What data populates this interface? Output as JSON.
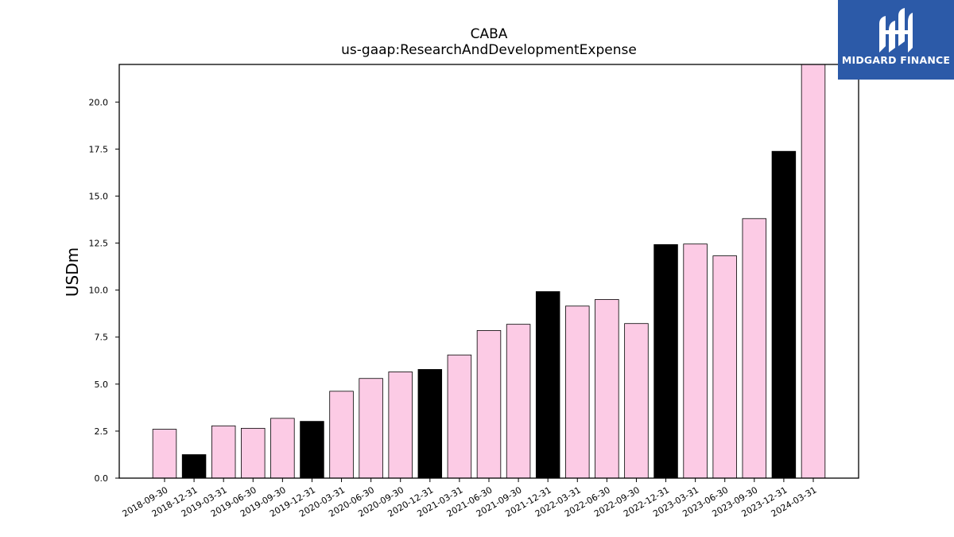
{
  "chart_data": {
    "type": "bar",
    "title": "CABA",
    "subtitle": "us-gaap:ResearchAndDevelopmentExpense",
    "xlabel": "",
    "ylabel": "USDm",
    "ylim": [
      0,
      22
    ],
    "yticks": [
      "0.0",
      "2.5",
      "5.0",
      "7.5",
      "10.0",
      "12.5",
      "15.0",
      "17.5",
      "20.0"
    ],
    "categories": [
      "2018-09-30",
      "2018-12-31",
      "2019-03-31",
      "2019-06-30",
      "2019-09-30",
      "2019-12-31",
      "2020-03-31",
      "2020-06-30",
      "2020-09-30",
      "2020-12-31",
      "2021-03-31",
      "2021-06-30",
      "2021-09-30",
      "2021-12-31",
      "2022-03-31",
      "2022-06-30",
      "2022-09-30",
      "2022-12-31",
      "2023-03-31",
      "2023-06-30",
      "2023-09-30",
      "2023-12-31",
      "2024-03-31"
    ],
    "values": [
      2.6,
      1.25,
      2.78,
      2.65,
      3.18,
      3.02,
      4.62,
      5.3,
      5.65,
      5.78,
      6.55,
      7.85,
      8.18,
      9.92,
      9.15,
      9.5,
      8.22,
      12.42,
      12.45,
      11.82,
      13.8,
      17.38,
      22.0
    ],
    "bar_colors": [
      "#fccbe5",
      "#000000",
      "#fccbe5",
      "#fccbe5",
      "#fccbe5",
      "#000000",
      "#fccbe5",
      "#fccbe5",
      "#fccbe5",
      "#000000",
      "#fccbe5",
      "#fccbe5",
      "#fccbe5",
      "#000000",
      "#fccbe5",
      "#fccbe5",
      "#fccbe5",
      "#000000",
      "#fccbe5",
      "#fccbe5",
      "#fccbe5",
      "#000000",
      "#fccbe5"
    ],
    "grid": false,
    "legend": "none"
  },
  "logo": {
    "text": "MIDGARD FINANCE",
    "icon": "midgard-logo-icon",
    "background": "#2c5aa8"
  }
}
